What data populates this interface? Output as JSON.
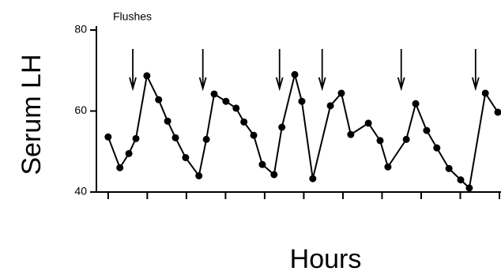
{
  "chart_data": {
    "type": "line",
    "ylabel": "Serum LH",
    "xlabel": "Hours",
    "annotation": "Flushes",
    "x": [
      0.0,
      0.3,
      0.53,
      0.71,
      0.99,
      1.29,
      1.52,
      1.72,
      1.98,
      2.32,
      2.51,
      2.71,
      3.01,
      3.27,
      3.47,
      3.72,
      3.94,
      4.24,
      4.44,
      4.77,
      4.95,
      5.23,
      5.68,
      5.96,
      6.2,
      6.65,
      6.95,
      7.15,
      7.62,
      7.86,
      8.14,
      8.4,
      8.71,
      9.01,
      9.23,
      9.64,
      9.96
    ],
    "series": [
      {
        "color": "#000000",
        "values": [
          53.6,
          46,
          49.5,
          53.2,
          68.7,
          62.8,
          57.5,
          53.4,
          48.5,
          44,
          53,
          64.2,
          62.4,
          60.7,
          57.3,
          54,
          46.8,
          44.3,
          56,
          69,
          62.4,
          43.3,
          61.3,
          64.4,
          54.2,
          57,
          52.7,
          46.2,
          53,
          61.8,
          55.2,
          50.9,
          45.8,
          43,
          41,
          64.4,
          59.7
        ]
      }
    ],
    "flush_arrows": [
      0.63,
      2.42,
      4.38,
      5.47,
      7.49,
      9.39
    ],
    "xlim": [
      -0.3,
      10.04
    ],
    "xticks": [
      0,
      1,
      2,
      3,
      4,
      5,
      6,
      7,
      8,
      9,
      10
    ],
    "ylim": [
      40,
      80
    ],
    "yticks": [
      40,
      60,
      80
    ]
  }
}
